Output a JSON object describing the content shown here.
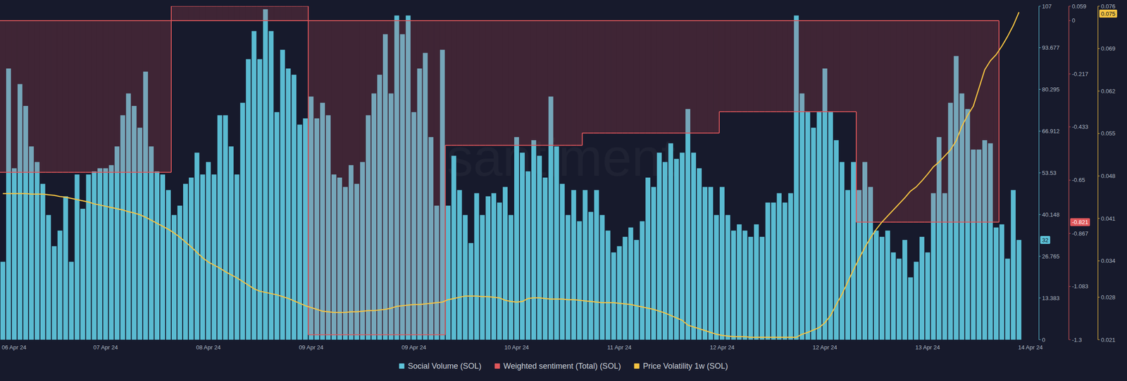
{
  "chart_data": {
    "type": "bar",
    "watermark": "santiment",
    "categories": [
      "06 Apr 24",
      null,
      null,
      null,
      null,
      null,
      null,
      null,
      null,
      null,
      null,
      null,
      null,
      null,
      null,
      null,
      null,
      null,
      "07 Apr 24",
      null,
      null,
      null,
      null,
      null,
      null,
      null,
      null,
      null,
      null,
      null,
      null,
      null,
      null,
      null,
      null,
      null,
      "08 Apr 24",
      null,
      null,
      null,
      null,
      null,
      null,
      null,
      null,
      null,
      null,
      null,
      null,
      null,
      null,
      null,
      null,
      null,
      "09 Apr 24",
      null,
      null,
      null,
      null,
      null,
      null,
      null,
      null,
      null,
      null,
      null,
      null,
      null,
      null,
      null,
      null,
      null,
      "09 Apr 24",
      null,
      null,
      null,
      null,
      null,
      null,
      null,
      null,
      null,
      null,
      null,
      null,
      null,
      null,
      null,
      null,
      null,
      "10 Apr 24",
      null,
      null,
      null,
      null,
      null,
      null,
      null,
      null,
      null,
      null,
      null,
      null,
      null,
      null,
      null,
      null,
      null,
      "11 Apr 24",
      null,
      null,
      null,
      null,
      null,
      null,
      null,
      null,
      null,
      null,
      null,
      null,
      null,
      null,
      null,
      null,
      null,
      "12 Apr 24",
      null,
      null,
      null,
      null,
      null,
      null,
      null,
      null,
      null,
      null,
      null,
      null,
      null,
      null,
      null,
      null,
      null,
      "12 Apr 24",
      null,
      null,
      null,
      null,
      null,
      null,
      null,
      null,
      null,
      null,
      null,
      null,
      null,
      null,
      null,
      null,
      null,
      "13 Apr 24",
      null,
      null,
      null,
      null,
      null,
      null,
      null,
      null,
      null,
      null,
      null,
      null,
      null,
      null,
      null,
      null,
      null,
      "14 Apr 24",
      null
    ],
    "series": [
      {
        "name": "Social Volume (SOL)",
        "type": "bar",
        "color": "#5ec4da",
        "values": [
          25,
          87,
          55,
          82,
          75,
          62,
          57,
          50,
          40,
          30,
          35,
          46,
          25,
          53,
          42,
          53,
          54,
          55,
          55,
          56,
          62,
          72,
          79,
          75,
          68,
          86,
          62,
          54,
          53,
          48,
          40,
          43,
          50,
          52,
          60,
          53,
          57,
          53,
          72,
          72,
          62,
          53,
          76,
          90,
          99,
          90,
          106,
          99,
          73,
          93,
          87,
          85,
          69,
          71,
          78,
          71,
          76,
          72,
          53,
          52,
          49,
          56,
          50,
          57,
          72,
          79,
          85,
          98,
          79,
          104,
          98,
          104,
          73,
          87,
          92,
          65,
          43,
          93,
          43,
          59,
          48,
          40,
          31,
          47,
          40,
          46,
          47,
          44,
          49,
          40,
          65,
          60,
          54,
          64,
          59,
          52,
          78,
          62,
          50,
          40,
          48,
          38,
          48,
          41,
          48,
          40,
          35,
          28,
          30,
          33,
          36,
          32,
          38,
          52,
          49,
          60,
          57,
          63,
          58,
          60,
          74,
          60,
          55,
          49,
          49,
          40,
          49,
          40,
          35,
          37,
          35,
          33,
          37,
          33,
          44,
          44,
          47,
          44,
          47,
          104,
          79,
          73,
          68,
          73,
          87,
          73,
          64,
          57,
          48,
          57,
          48,
          57,
          49,
          35,
          33,
          35,
          28,
          26,
          32,
          20,
          25,
          33,
          28,
          47,
          65,
          47,
          76,
          91,
          79,
          74,
          61,
          61,
          64,
          63,
          36,
          37,
          26,
          48,
          32,
          null,
          null,
          null
        ]
      },
      {
        "name": "Weighted sentiment (Total) (SOL)",
        "type": "area",
        "line_style": "step",
        "axis": "y2",
        "color": "#e0575b",
        "values": [
          -0.618,
          -0.618,
          -0.618,
          -0.618,
          -0.618,
          -0.618,
          -0.618,
          -0.618,
          -0.618,
          -0.618,
          -0.618,
          -0.618,
          -0.618,
          -0.618,
          -0.618,
          -0.618,
          -0.618,
          -0.618,
          -0.618,
          -0.618,
          -0.618,
          -0.618,
          -0.618,
          -0.618,
          -0.618,
          -0.618,
          -0.618,
          -0.618,
          -0.618,
          -0.618,
          0.059,
          0.059,
          0.059,
          0.059,
          0.059,
          0.059,
          0.059,
          0.059,
          0.059,
          0.059,
          0.059,
          0.059,
          0.059,
          0.059,
          0.059,
          0.059,
          0.059,
          0.059,
          0.059,
          0.059,
          0.059,
          0.059,
          0.059,
          0.059,
          -1.28,
          -1.28,
          -1.28,
          -1.28,
          -1.28,
          -1.28,
          -1.28,
          -1.28,
          -1.28,
          -1.28,
          -1.28,
          -1.28,
          -1.28,
          -1.28,
          -1.28,
          -1.28,
          -1.28,
          -1.28,
          -1.28,
          -1.28,
          -1.28,
          -1.28,
          -1.28,
          -1.28,
          -0.508,
          -0.508,
          -0.508,
          -0.508,
          -0.508,
          -0.508,
          -0.508,
          -0.508,
          -0.508,
          -0.508,
          -0.508,
          -0.508,
          -0.508,
          -0.508,
          -0.508,
          -0.508,
          -0.508,
          -0.508,
          -0.508,
          -0.508,
          -0.508,
          -0.508,
          -0.508,
          -0.508,
          -0.458,
          -0.458,
          -0.458,
          -0.458,
          -0.458,
          -0.458,
          -0.458,
          -0.458,
          -0.458,
          -0.458,
          -0.458,
          -0.458,
          -0.458,
          -0.458,
          -0.458,
          -0.458,
          -0.458,
          -0.458,
          -0.458,
          -0.458,
          -0.458,
          -0.458,
          -0.458,
          -0.458,
          -0.371,
          -0.371,
          -0.371,
          -0.371,
          -0.371,
          -0.371,
          -0.371,
          -0.371,
          -0.371,
          -0.371,
          -0.371,
          -0.371,
          -0.371,
          -0.371,
          -0.371,
          -0.371,
          -0.371,
          -0.371,
          -0.371,
          -0.371,
          -0.371,
          -0.371,
          -0.371,
          -0.371,
          -0.821,
          -0.821,
          -0.821,
          -0.821,
          -0.821,
          -0.821,
          -0.821,
          -0.821,
          -0.821,
          -0.821,
          -0.821,
          -0.821,
          -0.821,
          -0.821,
          -0.821,
          -0.821,
          -0.821,
          -0.821,
          -0.821,
          -0.821,
          -0.821,
          -0.821,
          -0.821,
          -0.821,
          -0.821,
          null,
          null,
          null,
          null,
          null,
          null,
          null
        ]
      },
      {
        "name": "Price Volatility 1w (SOL)",
        "type": "line",
        "axis": "y3",
        "color": "#f5c342",
        "values": [
          0.0451,
          0.0451,
          0.0451,
          0.0451,
          0.0451,
          0.045,
          0.045,
          0.045,
          0.0449,
          0.0448,
          0.0446,
          0.0445,
          0.0443,
          0.0441,
          0.0439,
          0.0437,
          0.0434,
          0.0432,
          0.043,
          0.0428,
          0.0426,
          0.0424,
          0.0421,
          0.0419,
          0.0416,
          0.0412,
          0.0407,
          0.0402,
          0.0397,
          0.0392,
          0.0386,
          0.0379,
          0.0371,
          0.0363,
          0.0354,
          0.0345,
          0.0338,
          0.0333,
          0.0328,
          0.0322,
          0.0317,
          0.0312,
          0.0306,
          0.03,
          0.0294,
          0.029,
          0.0288,
          0.0286,
          0.0284,
          0.0281,
          0.0278,
          0.0274,
          0.027,
          0.0266,
          0.0263,
          0.026,
          0.0257,
          0.0256,
          0.0255,
          0.0255,
          0.0255,
          0.0256,
          0.0256,
          0.0257,
          0.0258,
          0.0258,
          0.0259,
          0.026,
          0.0262,
          0.0265,
          0.0266,
          0.0267,
          0.0268,
          0.0268,
          0.0269,
          0.027,
          0.0271,
          0.0272,
          0.0276,
          0.0278,
          0.028,
          0.0282,
          0.0282,
          0.0282,
          0.0281,
          0.0281,
          0.028,
          0.0279,
          0.0275,
          0.0273,
          0.0272,
          0.0273,
          0.0278,
          0.0279,
          0.0279,
          0.0278,
          0.0277,
          0.0277,
          0.0277,
          0.0276,
          0.0276,
          0.0275,
          0.0274,
          0.0273,
          0.0272,
          0.0271,
          0.0271,
          0.0271,
          0.027,
          0.0269,
          0.0268,
          0.0266,
          0.0264,
          0.0262,
          0.026,
          0.0257,
          0.0254,
          0.025,
          0.0246,
          0.0242,
          0.0234,
          0.0231,
          0.0228,
          0.0225,
          0.0222,
          0.0219,
          0.0217,
          0.0216,
          0.0215,
          0.0215,
          0.0215,
          0.0214,
          0.0214,
          0.0214,
          0.0214,
          0.0214,
          0.0214,
          0.0214,
          0.0214,
          0.0214,
          0.0219,
          0.0222,
          0.0226,
          0.023,
          0.0238,
          0.025,
          0.0268,
          0.0285,
          0.0305,
          0.0325,
          0.0344,
          0.0362,
          0.0378,
          0.0392,
          0.0404,
          0.0414,
          0.0424,
          0.0434,
          0.0444,
          0.0455,
          0.0462,
          0.0472,
          0.0483,
          0.0495,
          0.0503,
          0.0513,
          0.0523,
          0.0538,
          0.0562,
          0.058,
          0.0595,
          0.0625,
          0.0655,
          0.067,
          0.068,
          0.0694,
          0.071,
          0.0728,
          0.075,
          null,
          null,
          null
        ]
      }
    ],
    "ylim": [
      0,
      107
    ],
    "yticks": [
      0,
      13.383,
      26.765,
      40.148,
      53.53,
      66.912,
      80.295,
      93.677,
      107
    ],
    "y2lim": [
      -1.3,
      0.059
    ],
    "y2ticks": [
      0.059,
      0,
      -0.217,
      -0.433,
      -0.65,
      -0.867,
      -1.083,
      -1.3
    ],
    "y3lim": [
      0.021,
      0.076
    ],
    "y3ticks": [
      0.076,
      0.069,
      0.062,
      0.055,
      0.048,
      0.041,
      0.034,
      0.028,
      0.021
    ],
    "grid": false,
    "legend": "bottom"
  }
}
